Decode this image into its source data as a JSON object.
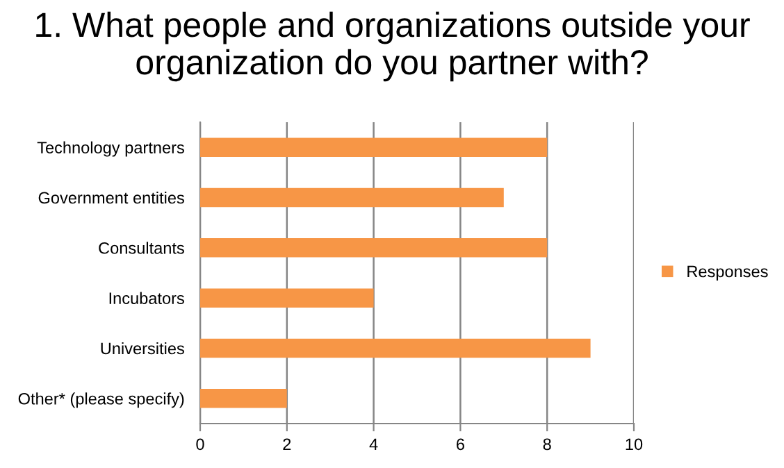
{
  "chart_data": {
    "type": "bar",
    "orientation": "horizontal",
    "title": "1. What people and organizations outside your organization do you partner with?",
    "categories": [
      "Technology partners",
      "Government entities",
      "Consultants",
      "Incubators",
      "Universities",
      "Other* (please specify)"
    ],
    "series": [
      {
        "name": "Responses",
        "color": "#f79646",
        "values": [
          8,
          7,
          8,
          4,
          9,
          2
        ]
      }
    ],
    "xlim": [
      0,
      10
    ],
    "xticks": [
      0,
      2,
      4,
      6,
      8,
      10
    ],
    "grid": "x",
    "legend": "right"
  }
}
